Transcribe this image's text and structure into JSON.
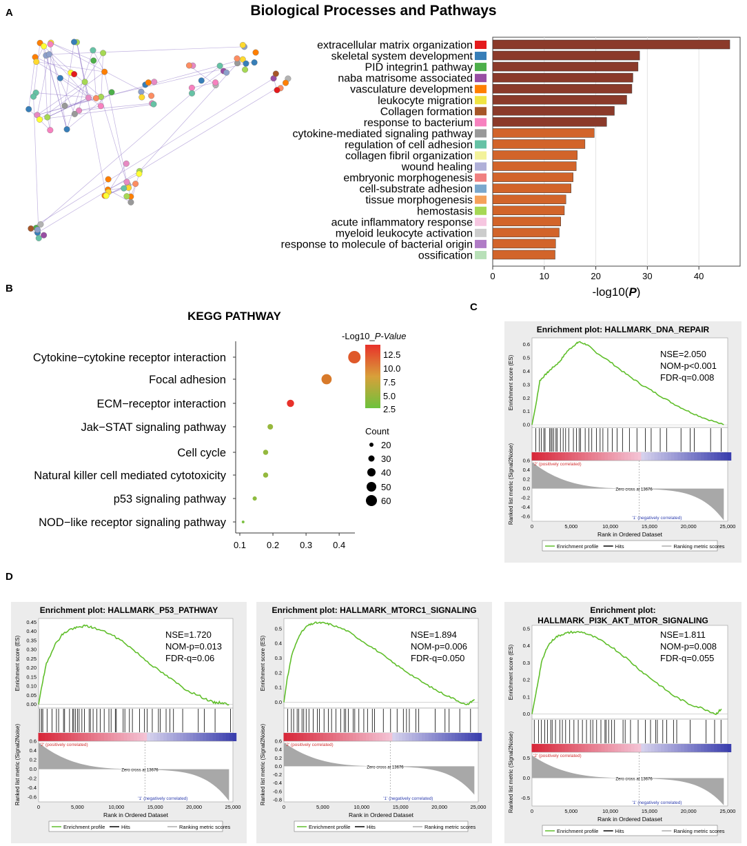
{
  "main_title": "Biological Processes and  Pathways",
  "panel_labels": {
    "A": "A",
    "B": "B",
    "C": "C",
    "D": "D"
  },
  "colors": {
    "bar_dark": "#8b3a2a",
    "bar_light": "#d2642a",
    "es_line": "#5fbe2a",
    "kegg_low": "#7cc142",
    "kegg_high": "#e8312a"
  },
  "network": {
    "node_colors": [
      "#e41a1c",
      "#377eb8",
      "#4daf4a",
      "#984ea3",
      "#ff7f00",
      "#ffff33",
      "#a65628",
      "#f781bf",
      "#999999",
      "#66c2a5",
      "#fc8d62",
      "#8da0cb",
      "#e78ac3",
      "#a6d854",
      "#ffd92f",
      "#b3b3b3"
    ]
  },
  "chart_data": [
    {
      "type": "bar",
      "id": "A",
      "orientation": "horizontal",
      "categories": [
        "extracellular matrix organization",
        "skeletal system development",
        "PID integrin1 pathway",
        "naba matrisome associated",
        "vasculature development",
        "leukocyte migration",
        "Collagen formation",
        "response to bacterium",
        "cytokine-mediated signaling pathway",
        "regulation of cell adhesion",
        "collagen fibril organization",
        "wound healing",
        "embryonic morphogenesis",
        "cell-substrate adhesion",
        "tissue morphogenesis",
        "hemostasis",
        "acute inflammatory response",
        "myeloid leukocyte activation",
        "response to molecule of bacterial origin",
        "ossification"
      ],
      "values": [
        46,
        28.5,
        28.2,
        27.2,
        27,
        26,
        23.6,
        22.1,
        19.7,
        17.9,
        16.4,
        16.2,
        15.6,
        15.2,
        14.2,
        13.9,
        13.2,
        12.9,
        12.2,
        12.1
      ],
      "legend_colors": [
        "#e41a1c",
        "#377eb8",
        "#4daf4a",
        "#984ea3",
        "#ff7f00",
        "#f0e442",
        "#a65628",
        "#f781bf",
        "#999999",
        "#66c2a5",
        "#f3f29a",
        "#b0b0d8",
        "#f08080",
        "#7aa7cc",
        "#f5a15a",
        "#a6d854",
        "#f6c6e0",
        "#cccccc",
        "#b07cc6",
        "#b8e0b8"
      ],
      "xlabel": "-log10(P)",
      "xlim": [
        0,
        48
      ],
      "xticks": [
        "0",
        "10",
        "20",
        "30",
        "40"
      ]
    },
    {
      "type": "scatter",
      "id": "B",
      "title": "KEGG PATHWAY",
      "categories": [
        "Cytokine−cytokine receptor interaction",
        "Focal adhesion",
        "ECM−receptor interaction",
        "Jak−STAT signaling pathway",
        "Cell cycle",
        "Natural killer cell mediated cytotoxicity",
        "p53 signaling pathway",
        "NOD−like receptor signaling pathway"
      ],
      "x": [
        0.446,
        0.362,
        0.253,
        0.192,
        0.178,
        0.178,
        0.145,
        0.11
      ],
      "neglog10p": [
        11,
        9,
        13.5,
        4,
        3.8,
        3.8,
        3.5,
        2.5
      ],
      "count": [
        62,
        50,
        34,
        25,
        23,
        23,
        18,
        10
      ],
      "xlim": [
        0.1,
        0.46
      ],
      "xticks": [
        "0.1",
        "0.2",
        "0.3",
        "0.4"
      ],
      "color_legend_title": "-Log10_",
      "color_legend_title_italic": "P-Value",
      "color_ticks": [
        "12.5",
        "10.0",
        "7.5",
        "5.0",
        "2.5"
      ],
      "size_legend_title": "Count",
      "size_ticks": [
        "20",
        "30",
        "40",
        "50",
        "60"
      ]
    },
    {
      "type": "line",
      "id": "C",
      "title": "Enrichment plot: HALLMARK_DNA_REPAIR",
      "title_lines": [
        "Enrichment plot: HALLMARK_DNA_REPAIR"
      ],
      "stats": [
        "NSE=2.050",
        "NOM-p<0.001",
        "FDR-q=0.008"
      ],
      "es_yticks": [
        "0.6",
        "0.5",
        "0.4",
        "0.3",
        "0.2",
        "0.1",
        "0.0"
      ],
      "es_ymax": 0.65,
      "es_ymin": -0.02,
      "es_curve": [
        [
          0,
          0
        ],
        [
          500,
          0.15
        ],
        [
          1000,
          0.33
        ],
        [
          1800,
          0.38
        ],
        [
          2500,
          0.42
        ],
        [
          3500,
          0.47
        ],
        [
          4500,
          0.55
        ],
        [
          5500,
          0.6
        ],
        [
          6000,
          0.62
        ],
        [
          7000,
          0.6
        ],
        [
          8000,
          0.55
        ],
        [
          10000,
          0.47
        ],
        [
          12000,
          0.38
        ],
        [
          14000,
          0.3
        ],
        [
          16000,
          0.23
        ],
        [
          18000,
          0.16
        ],
        [
          20000,
          0.1
        ],
        [
          22000,
          0.05
        ],
        [
          24500,
          0
        ]
      ],
      "ylabel_es": "Enrichment score (ES)",
      "rank_yticks": [
        "0.6",
        "0.4",
        "0.2",
        "0.0",
        "-0.2",
        "-0.4",
        "-0.6"
      ],
      "rank_ymax": 0.6,
      "rank_ymin": -0.7,
      "ylabel_rank": "Ranked list metric (Signal2Noise)",
      "xlabel": "Rank in Ordered Dataset",
      "xticks": [
        "0",
        "5,000",
        "10,000",
        "15,000",
        "20,000",
        "25,000"
      ],
      "pos_label": "'2' (positively correlated)",
      "neg_label": "'1' (negatively correlated)",
      "zero_cross": "Zero cross at 13676",
      "legend": [
        "Enrichment profile",
        "Hits",
        "Ranking metric scores"
      ],
      "hits_seed": 7
    },
    {
      "type": "line",
      "id": "D1",
      "title": "Enrichment plot: HALLMARK_P53_PATHWAY",
      "title_lines": [
        "Enrichment plot: HALLMARK_P53_PATHWAY"
      ],
      "stats": [
        "NSE=1.720",
        "NOM-p=0.013",
        "FDR-q=0.06"
      ],
      "es_yticks": [
        "0.45",
        "0.40",
        "0.35",
        "0.30",
        "0.25",
        "0.20",
        "0.15",
        "0.10",
        "0.05",
        "0.00"
      ],
      "es_ymax": 0.47,
      "es_ymin": -0.02,
      "es_curve": [
        [
          0,
          0
        ],
        [
          400,
          0.1
        ],
        [
          1000,
          0.22
        ],
        [
          2000,
          0.32
        ],
        [
          3000,
          0.38
        ],
        [
          4000,
          0.41
        ],
        [
          5000,
          0.42
        ],
        [
          6000,
          0.43
        ],
        [
          7000,
          0.42
        ],
        [
          9000,
          0.39
        ],
        [
          11000,
          0.34
        ],
        [
          13000,
          0.27
        ],
        [
          15000,
          0.2
        ],
        [
          17000,
          0.14
        ],
        [
          19000,
          0.08
        ],
        [
          21000,
          0.04
        ],
        [
          22500,
          0.01
        ],
        [
          23500,
          0.01
        ],
        [
          24500,
          0
        ]
      ],
      "ylabel_es": "Enrichment score (ES)",
      "rank_yticks": [
        "0.6",
        "0.4",
        "0.2",
        "0.0",
        "-0.2",
        "-0.4",
        "-0.6"
      ],
      "rank_ymax": 0.6,
      "rank_ymin": -0.7,
      "ylabel_rank": "Ranked list metric (Signal2Noise)",
      "xlabel": "Rank in Ordered Dataset",
      "xticks": [
        "0",
        "5,000",
        "10,000",
        "15,000",
        "20,000",
        "25,000"
      ],
      "pos_label": "'2' (positively correlated)",
      "neg_label": "'1' (negatively correlated)",
      "zero_cross": "Zero cross at 13676",
      "legend": [
        "Enrichment profile",
        "Hits",
        "Ranking metric scores"
      ],
      "hits_seed": 19
    },
    {
      "type": "line",
      "id": "D2",
      "title": "Enrichment plot: HALLMARK_MTORC1_SIGNALING",
      "title_lines": [
        "Enrichment plot: HALLMARK_MTORC1_SIGNALING"
      ],
      "stats": [
        "NSE=1.894",
        "NOM-p=0.006",
        "FDR-q=0.050"
      ],
      "es_yticks": [
        "0.5",
        "0.4",
        "0.3",
        "0.2",
        "0.1",
        "0.0"
      ],
      "es_ymax": 0.57,
      "es_ymin": -0.04,
      "es_curve": [
        [
          0,
          0
        ],
        [
          400,
          0.15
        ],
        [
          1000,
          0.32
        ],
        [
          2000,
          0.46
        ],
        [
          3000,
          0.52
        ],
        [
          4000,
          0.54
        ],
        [
          5000,
          0.54
        ],
        [
          6000,
          0.53
        ],
        [
          8000,
          0.49
        ],
        [
          10000,
          0.42
        ],
        [
          12000,
          0.35
        ],
        [
          14000,
          0.27
        ],
        [
          16000,
          0.2
        ],
        [
          18000,
          0.13
        ],
        [
          20000,
          0.07
        ],
        [
          22000,
          0.02
        ],
        [
          23500,
          -0.02
        ],
        [
          24500,
          0.02
        ]
      ],
      "ylabel_es": "Enrichment score (ES)",
      "rank_yticks": [
        "0.6",
        "0.4",
        "0.2",
        "0.0",
        "-0.2",
        "-0.4",
        "-0.6",
        "-0.8"
      ],
      "rank_ymax": 0.6,
      "rank_ymin": -0.85,
      "ylabel_rank": "Ranked list metric (Signal2Noise)",
      "xlabel": "Rank in Ordered Dataset",
      "xticks": [
        "0",
        "5,000",
        "10,000",
        "15,000",
        "20,000",
        "25,000"
      ],
      "pos_label": "'2' (positively correlated)",
      "neg_label": "'1' (negatively correlated)",
      "zero_cross": "Zero cross at 13676",
      "legend": [
        "Enrichment profile",
        "Hits",
        "Ranking metric scores"
      ],
      "hits_seed": 31
    },
    {
      "type": "line",
      "id": "D3",
      "title": "Enrichment plot: HALLMARK_PI3K_AKT_MTOR_SIGNALING",
      "title_lines": [
        "Enrichment plot:",
        "HALLMARK_PI3K_AKT_MTOR_SIGNALING"
      ],
      "stats": [
        "NSE=1.811",
        "NOM-p=0.008",
        "FDR-q=0.055"
      ],
      "es_yticks": [
        "0.5",
        "0.4",
        "0.3",
        "0.2",
        "0.1",
        "0.0"
      ],
      "es_ymax": 0.52,
      "es_ymin": -0.03,
      "es_curve": [
        [
          0,
          0
        ],
        [
          500,
          0.12
        ],
        [
          1200,
          0.3
        ],
        [
          2000,
          0.4
        ],
        [
          3000,
          0.45
        ],
        [
          4000,
          0.47
        ],
        [
          5000,
          0.48
        ],
        [
          6500,
          0.48
        ],
        [
          8000,
          0.45
        ],
        [
          10000,
          0.4
        ],
        [
          12000,
          0.33
        ],
        [
          14000,
          0.25
        ],
        [
          16000,
          0.18
        ],
        [
          18000,
          0.11
        ],
        [
          20000,
          0.06
        ],
        [
          22000,
          0.03
        ],
        [
          23500,
          0
        ],
        [
          24200,
          0.03
        ]
      ],
      "ylabel_es": "Enrichment score (ES)",
      "rank_yticks": [
        "0.5",
        "0.0",
        "-0.5"
      ],
      "rank_ymax": 0.65,
      "rank_ymin": -0.7,
      "ylabel_rank": "Ranked list metric (Signal2Noise)",
      "xlabel": "Rank in Ordered Dataset",
      "xticks": [
        "0",
        "5,000",
        "10,000",
        "15,000",
        "20,000",
        "25,000"
      ],
      "pos_label": "'2' (positively correlated)",
      "neg_label": "'1' (negatively correlated)",
      "zero_cross": "Zero cross at 13676",
      "legend": [
        "Enrichment profile",
        "Hits",
        "Ranking metric scores"
      ],
      "hits_seed": 43
    }
  ]
}
